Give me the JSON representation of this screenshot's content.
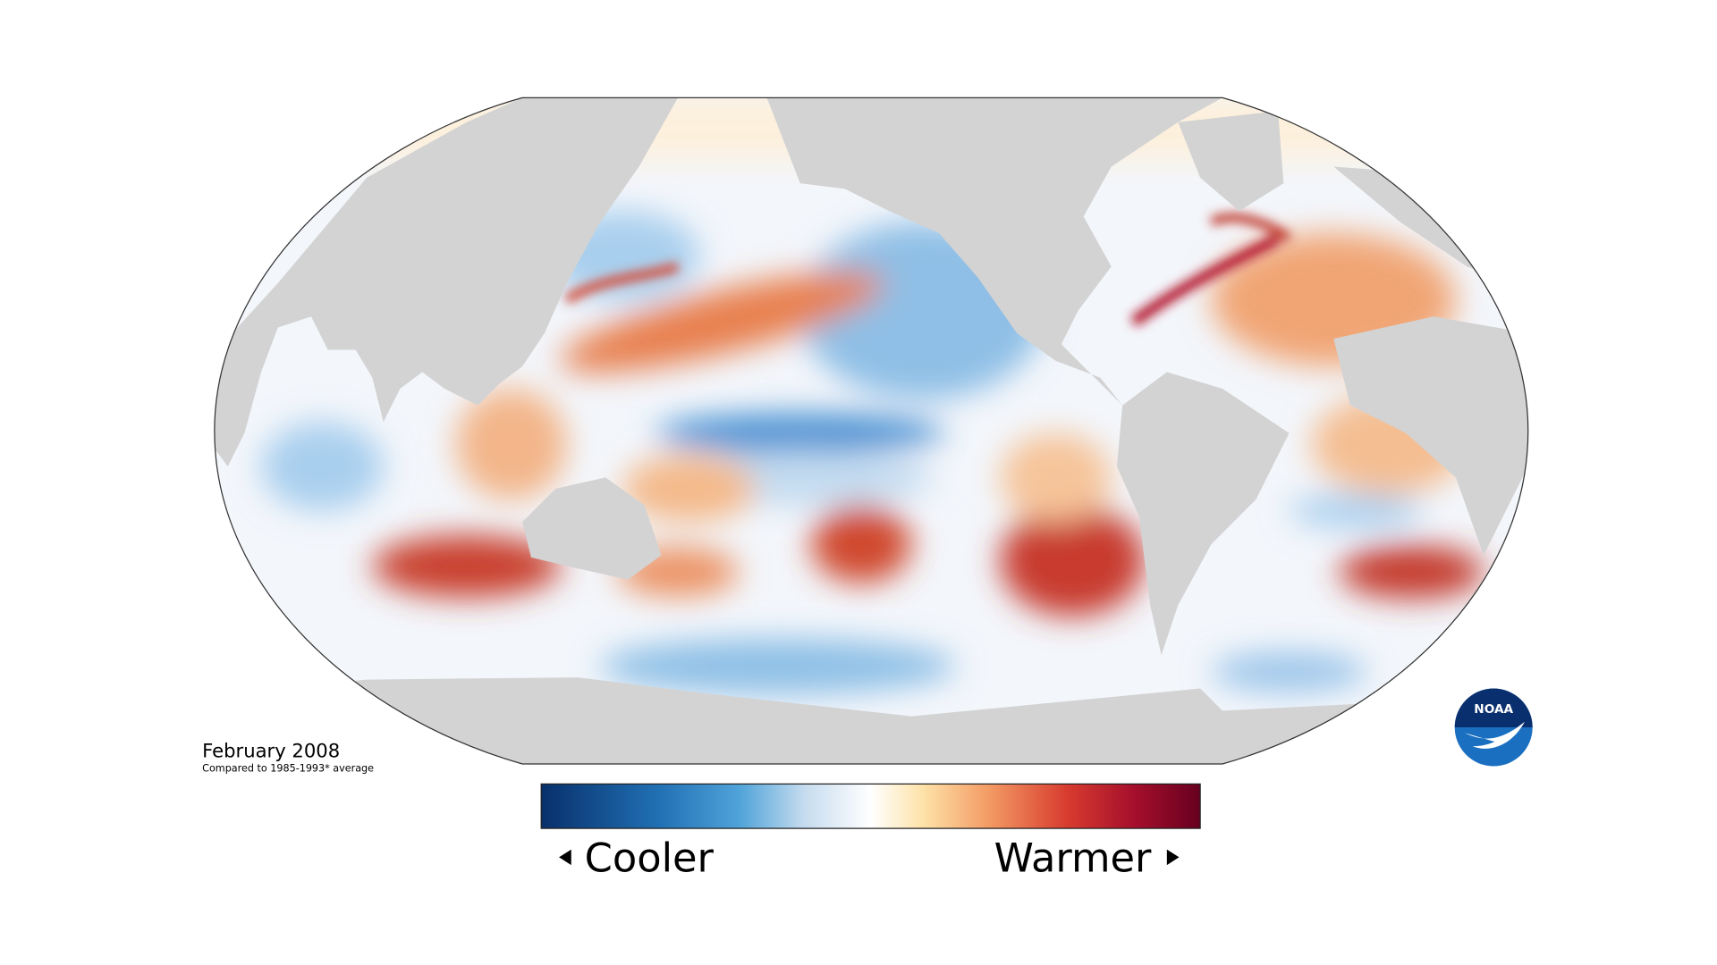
{
  "map": {
    "date": "February 2008",
    "baseline": "Compared to 1985-1993* average"
  },
  "legend": {
    "low_label": "Cooler",
    "high_label": "Warmer"
  },
  "logo": {
    "text": "NOAA"
  }
}
